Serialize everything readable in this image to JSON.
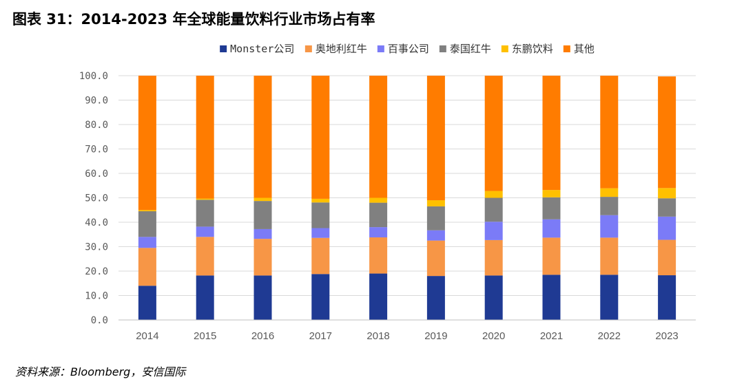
{
  "title": "图表 31：2014-2023 年全球能量饮料行业市场占有率",
  "source": "资料来源：Bloomberg，安信国际",
  "chart_data": {
    "type": "bar",
    "stacked": true,
    "title": "图表 31：2014-2023 年全球能量饮料行业市场占有率",
    "xlabel": "",
    "ylabel": "",
    "ylim": [
      0,
      100
    ],
    "yticks": [
      0,
      10,
      20,
      30,
      40,
      50,
      60,
      70,
      80,
      90,
      100
    ],
    "ytick_labels": [
      "0.0",
      "10.0",
      "20.0",
      "30.0",
      "40.0",
      "50.0",
      "60.0",
      "70.0",
      "80.0",
      "90.0",
      "100.0"
    ],
    "grid": true,
    "legend_position": "top",
    "categories": [
      "2014",
      "2015",
      "2016",
      "2017",
      "2018",
      "2019",
      "2020",
      "2021",
      "2022",
      "2023"
    ],
    "series": [
      {
        "name": "Monster公司",
        "color": "#1F3A93",
        "values": [
          14.0,
          18.2,
          18.2,
          18.8,
          19.0,
          18.0,
          18.2,
          18.5,
          18.5,
          18.3
        ]
      },
      {
        "name": "奥地利红牛",
        "color": "#F79646",
        "values": [
          15.5,
          15.8,
          15.0,
          14.8,
          14.8,
          14.5,
          14.5,
          15.2,
          15.2,
          14.5
        ]
      },
      {
        "name": "百事公司",
        "color": "#7B7BF7",
        "values": [
          4.5,
          4.2,
          4.0,
          4.0,
          4.2,
          4.2,
          7.5,
          7.5,
          9.2,
          9.5
        ]
      },
      {
        "name": "泰国红牛",
        "color": "#808080",
        "values": [
          10.5,
          11.0,
          11.5,
          10.5,
          10.0,
          9.8,
          9.8,
          9.0,
          7.5,
          7.5
        ]
      },
      {
        "name": "东鹏饮料",
        "color": "#FFC000",
        "values": [
          0.5,
          0.5,
          1.3,
          1.5,
          2.0,
          2.5,
          2.8,
          3.0,
          3.5,
          4.2
        ]
      },
      {
        "name": "其他",
        "color": "#FF7C00",
        "values": [
          55.0,
          50.3,
          50.0,
          50.4,
          50.0,
          51.0,
          47.2,
          46.8,
          46.1,
          45.7
        ]
      }
    ]
  }
}
